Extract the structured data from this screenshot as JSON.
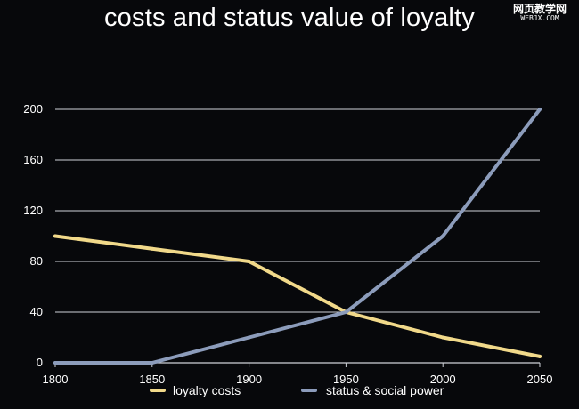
{
  "chart_data": {
    "type": "line",
    "title": "costs and status value of loyalty",
    "xlabel": "",
    "ylabel": "",
    "x": [
      1800,
      1850,
      1900,
      1950,
      2000,
      2050
    ],
    "xlim": [
      1800,
      2050
    ],
    "ylim": [
      0,
      200
    ],
    "yticks": [
      0,
      40,
      80,
      120,
      160,
      200
    ],
    "xticks": [
      1800,
      1850,
      1900,
      1950,
      2000,
      2050
    ],
    "grid": true,
    "legend_position": "bottom",
    "series": [
      {
        "name": "loyalty costs",
        "color": "#f1d98a",
        "values": [
          100,
          90,
          80,
          40,
          20,
          5
        ]
      },
      {
        "name": "status & social power",
        "color": "#8c9cbb",
        "values": [
          0,
          0,
          20,
          40,
          100,
          200
        ]
      }
    ]
  },
  "watermark": {
    "line1": "网页教学网",
    "line2": "WEBJX.COM"
  },
  "colors": {
    "background": "#07080b",
    "grid": "#cfd2d8",
    "text": "#ffffff"
  }
}
